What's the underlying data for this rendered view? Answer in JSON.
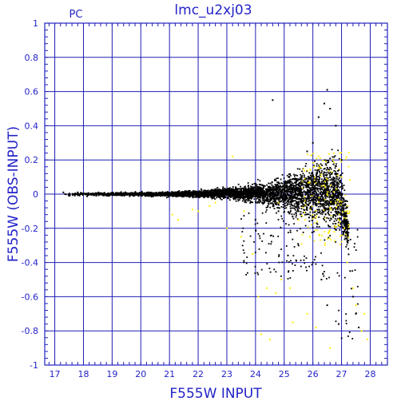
{
  "chart_data": {
    "type": "scatter",
    "title": "lmc_u2xj03",
    "corner_label": "PC",
    "xlabel": "F555W INPUT",
    "ylabel": "F555W (OBS-INPUT)",
    "xlim": [
      16.65,
      28.6
    ],
    "ylim": [
      -1,
      1
    ],
    "xticks": [
      17,
      18,
      19,
      20,
      21,
      22,
      23,
      24,
      25,
      26,
      27,
      28
    ],
    "yticks": [
      1,
      0.8,
      0.6,
      0.4,
      0.2,
      0,
      -0.2,
      -0.4,
      -0.6,
      -0.8,
      -1
    ],
    "ytick_labels": [
      "1",
      "0.8",
      "0.6",
      "0.4",
      "0.2",
      "0",
      "-0.2",
      "-0.4",
      "-0.6",
      "-0.8",
      "-1"
    ],
    "grid": true,
    "colors": {
      "axes": "#2323c8",
      "grid": "#1e1eb4",
      "series_main": "#000000",
      "series_flagged": "#ffee00"
    },
    "series": [
      {
        "color": "#000000",
        "description_points": [
          [
            17.3,
            0.01
          ],
          [
            17.5,
            -0.01
          ],
          [
            17.8,
            0.01
          ],
          [
            18.0,
            0.0
          ],
          [
            18.5,
            0.005
          ],
          [
            19.0,
            0.0
          ],
          [
            19.5,
            0.0
          ],
          [
            20.0,
            0.0
          ],
          [
            20.5,
            0.0
          ],
          [
            21.0,
            0.0
          ],
          [
            21.5,
            0.005
          ],
          [
            22.0,
            0.01
          ],
          [
            22.5,
            0.01
          ],
          [
            23.0,
            0.015
          ],
          [
            23.5,
            0.02
          ],
          [
            24.0,
            0.02
          ],
          [
            24.5,
            0.03
          ],
          [
            24.6,
            0.55
          ],
          [
            25.0,
            0.04
          ],
          [
            25.5,
            0.05
          ],
          [
            25.8,
            0.25
          ],
          [
            26.0,
            0.3
          ],
          [
            26.2,
            0.45
          ],
          [
            26.4,
            0.53
          ],
          [
            26.5,
            0.61
          ],
          [
            26.6,
            0.5
          ],
          [
            26.8,
            0.4
          ],
          [
            27.0,
            0.2
          ],
          [
            27.2,
            -0.2
          ],
          [
            27.3,
            -0.45
          ],
          [
            27.4,
            -0.6
          ],
          [
            27.5,
            -0.7
          ],
          [
            27.6,
            -0.78
          ],
          [
            26.5,
            -0.65
          ],
          [
            26.9,
            -0.76
          ],
          [
            24.0,
            -0.15
          ],
          [
            24.8,
            -0.1
          ],
          [
            25.5,
            -0.3
          ],
          [
            26.0,
            -0.4
          ],
          [
            26.3,
            -0.5
          ]
        ],
        "band": [
          [
            17.3,
            0.012,
            -0.012
          ],
          [
            18.0,
            0.014,
            -0.014
          ],
          [
            19.0,
            0.015,
            -0.015
          ],
          [
            20.0,
            0.016,
            -0.016
          ],
          [
            21.0,
            0.02,
            -0.02
          ],
          [
            22.0,
            0.03,
            -0.025
          ],
          [
            23.0,
            0.05,
            -0.04
          ],
          [
            23.5,
            0.06,
            -0.05
          ],
          [
            24.0,
            0.08,
            -0.07
          ],
          [
            24.5,
            0.1,
            -0.1
          ],
          [
            25.0,
            0.14,
            -0.13
          ],
          [
            25.5,
            0.18,
            -0.17
          ],
          [
            26.0,
            0.24,
            -0.2
          ],
          [
            26.5,
            0.3,
            -0.24
          ],
          [
            26.9,
            0.3,
            -0.3
          ],
          [
            27.1,
            0.1,
            -0.35
          ],
          [
            27.25,
            -0.05,
            -0.4
          ]
        ]
      },
      {
        "color": "#ffee00",
        "points": [
          [
            21.1,
            -0.12
          ],
          [
            21.3,
            -0.15
          ],
          [
            21.8,
            -0.09
          ],
          [
            22.4,
            -0.07
          ],
          [
            23.2,
            0.22
          ],
          [
            23.0,
            -0.2
          ],
          [
            23.5,
            -0.25
          ],
          [
            23.9,
            -0.35
          ],
          [
            24.1,
            -0.6
          ],
          [
            24.4,
            -0.55
          ],
          [
            24.7,
            -0.58
          ],
          [
            24.9,
            -0.5
          ],
          [
            24.2,
            -0.82
          ],
          [
            24.5,
            -0.85
          ],
          [
            25.3,
            -0.75
          ],
          [
            25.2,
            -0.55
          ],
          [
            25.8,
            -0.7
          ],
          [
            26.1,
            -0.78
          ],
          [
            26.6,
            -0.9
          ],
          [
            26.2,
            0.15
          ],
          [
            26.4,
            0.05
          ],
          [
            26.7,
            0.2
          ],
          [
            26.8,
            -0.05
          ],
          [
            26.9,
            -0.15
          ],
          [
            27.0,
            0.1
          ],
          [
            27.1,
            -0.2
          ],
          [
            27.2,
            -0.1
          ],
          [
            27.2,
            -0.4
          ],
          [
            27.4,
            -0.55
          ],
          [
            27.5,
            -0.65
          ],
          [
            27.8,
            -0.7
          ],
          [
            27.9,
            -0.85
          ],
          [
            27.7,
            -0.8
          ],
          [
            26.5,
            0.0
          ],
          [
            25.9,
            -0.25
          ],
          [
            25.5,
            -0.15
          ],
          [
            24.8,
            -0.05
          ],
          [
            22.0,
            -0.1
          ],
          [
            22.6,
            -0.05
          ],
          [
            23.6,
            -0.1
          ]
        ]
      }
    ]
  }
}
